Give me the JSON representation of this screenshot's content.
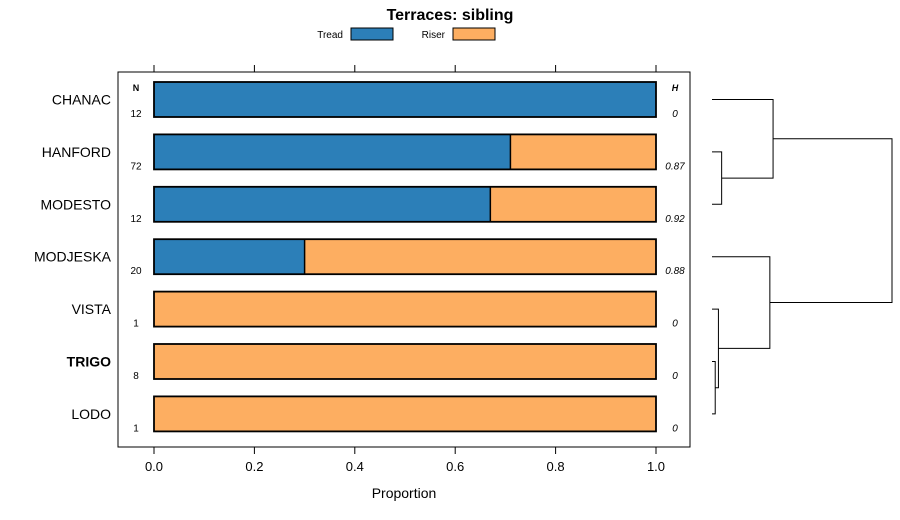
{
  "chart_data": {
    "type": "bar",
    "orientation": "horizontal",
    "stacked": true,
    "title": "Terraces: sibling",
    "xlabel": "Proportion",
    "ylabel": "",
    "xlim": [
      -0.07,
      1.07
    ],
    "xticks": [
      "0.0",
      "0.2",
      "0.4",
      "0.6",
      "0.8",
      "1.0"
    ],
    "xtick_values": [
      0.0,
      0.2,
      0.4,
      0.6,
      0.8,
      1.0
    ],
    "legend": {
      "placement": "top",
      "entries": [
        {
          "name": "Tread",
          "color": "#2c7fb8"
        },
        {
          "name": "Riser",
          "color": "#fdae61"
        }
      ]
    },
    "column_headers": {
      "n": "N",
      "h": "H"
    },
    "categories": [
      "CHANAC",
      "HANFORD",
      "MODESTO",
      "MODJESKA",
      "VISTA",
      "TRIGO",
      "LODO"
    ],
    "highlighted_category": "TRIGO",
    "series": [
      {
        "name": "Tread",
        "color": "#2c7fb8",
        "values": [
          1.0,
          0.71,
          0.67,
          0.3,
          0.0,
          0.0,
          0.0
        ]
      },
      {
        "name": "Riser",
        "color": "#fdae61",
        "values": [
          0.0,
          0.29,
          0.33,
          0.7,
          1.0,
          1.0,
          1.0
        ]
      }
    ],
    "n_values": [
      "12",
      "72",
      "12",
      "20",
      "1",
      "8",
      "1"
    ],
    "h_values": [
      "0",
      "0.87",
      "0.92",
      "0.88",
      "0",
      "0",
      "0"
    ],
    "dendrogram": {
      "merges": [
        {
          "a": 5,
          "b": 6,
          "height": 0.05
        },
        {
          "a": 4,
          "b": "m0",
          "height": 0.1
        },
        {
          "a": 1,
          "b": 2,
          "height": 0.15
        },
        {
          "a": 3,
          "b": "m1",
          "height": 0.9
        },
        {
          "a": 0,
          "b": "m2",
          "height": 0.95
        },
        {
          "a": "m4",
          "b": "m3",
          "height": 2.8
        }
      ],
      "max_height": 2.8
    }
  }
}
